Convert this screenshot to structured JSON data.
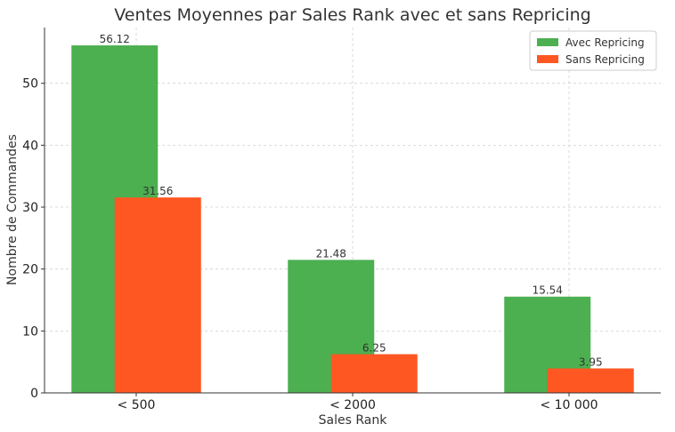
{
  "chart_data": {
    "type": "bar",
    "title": "Ventes Moyennes par Sales Rank avec et sans Repricing",
    "xlabel": "Sales Rank",
    "ylabel": "Nombre de Commandes",
    "categories": [
      "< 500",
      "< 2000",
      "< 10 000"
    ],
    "series": [
      {
        "name": "Avec Repricing",
        "values": [
          56.12,
          21.48,
          15.54
        ],
        "color": "#4caf50"
      },
      {
        "name": "Sans Repricing",
        "values": [
          31.56,
          6.25,
          3.95
        ],
        "color": "#ff5722"
      }
    ],
    "data_labels": [
      [
        "56.12",
        "21.48",
        "15.54"
      ],
      [
        "31.56",
        "6.25",
        "3.95"
      ]
    ],
    "ylim": [
      0,
      59
    ],
    "yticks": [
      0,
      10,
      20,
      30,
      40,
      50
    ],
    "grid": true,
    "legend_position": "top-right"
  }
}
